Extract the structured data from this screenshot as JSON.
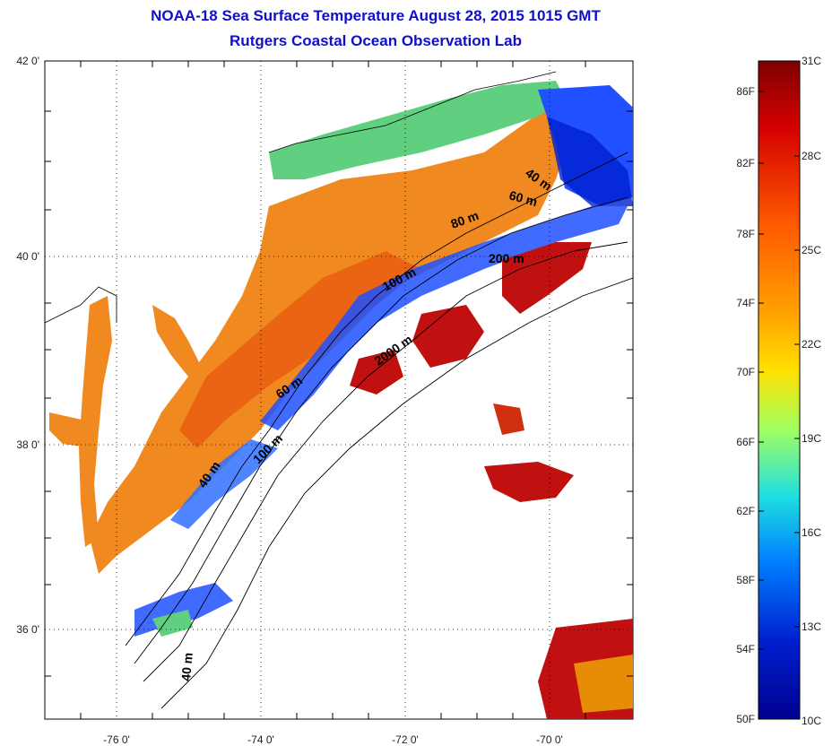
{
  "title": {
    "line1": "NOAA-18 Sea Surface Temperature August 28, 2015 1015 GMT",
    "line2": "Rutgers Coastal Ocean Observation Lab"
  },
  "axes": {
    "lat_labels": [
      "42 0'",
      "40 0'",
      "38 0'",
      "36 0'"
    ],
    "lon_labels": [
      "-76 0'",
      "-74 0'",
      "-72 0'",
      "-70 0'"
    ]
  },
  "contours": {
    "labels": [
      "40 m",
      "60 m",
      "80 m",
      "200 m",
      "100 m",
      "2000 m",
      "60 m",
      "100 m",
      "40 m",
      "40 m"
    ]
  },
  "colorbar": {
    "fahrenheit": [
      "86F",
      "82F",
      "78F",
      "74F",
      "70F",
      "66F",
      "62F",
      "58F",
      "54F",
      "50F"
    ],
    "celsius": [
      "31C",
      "28C",
      "25C",
      "22C",
      "19C",
      "16C",
      "13C",
      "10C"
    ],
    "colors": [
      "#7f0000",
      "#d40000",
      "#ff5a00",
      "#ffa000",
      "#ffe000",
      "#a0ff60",
      "#20e0e0",
      "#0080ff",
      "#0020d0",
      "#00008f"
    ]
  },
  "colors": {
    "title": "#1010cc",
    "land": "#ffffff",
    "warm_shelf": "#f08a20",
    "cool_north": "#60d080",
    "cold_cape": "#2050ff",
    "gulfstream": "#c01010"
  }
}
